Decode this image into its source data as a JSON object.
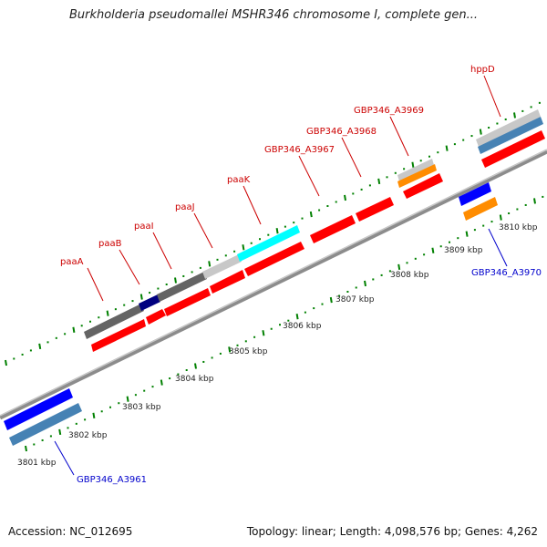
{
  "title": "Burkholderia pseudomallei MSHR346 chromosome I, complete gen...",
  "colors": {
    "red": "#ff0000",
    "dark_gray": "#646464",
    "light_gray": "#c8c8c8",
    "navy": "#000080",
    "cyan": "#00ffff",
    "blue": "#0000ff",
    "steel_blue": "#4682b4",
    "orange": "#ff8c00",
    "ticks_green": "#008000",
    "label_red": "#cc0000",
    "label_blue": "#0000cc"
  },
  "scale_ticks": [
    {
      "label": "3801 kbp",
      "kbp": 3801
    },
    {
      "label": "3802 kbp",
      "kbp": 3802
    },
    {
      "label": "3803 kbp",
      "kbp": 3803
    },
    {
      "label": "3804 kbp",
      "kbp": 3804
    },
    {
      "label": "3805 kbp",
      "kbp": 3805
    },
    {
      "label": "3806 kbp",
      "kbp": 3806
    },
    {
      "label": "3807 kbp",
      "kbp": 3807
    },
    {
      "label": "3808 kbp",
      "kbp": 3808
    },
    {
      "label": "3809 kbp",
      "kbp": 3809
    },
    {
      "label": "3810 kbp",
      "kbp": 3810
    }
  ],
  "feature_labels": [
    {
      "text": "paaA",
      "color": "label_red"
    },
    {
      "text": "paaB",
      "color": "label_red"
    },
    {
      "text": "paaI",
      "color": "label_red"
    },
    {
      "text": "paaJ",
      "color": "label_red"
    },
    {
      "text": "paaK",
      "color": "label_red"
    },
    {
      "text": "GBP346_A3967",
      "color": "label_red"
    },
    {
      "text": "GBP346_A3968",
      "color": "label_red"
    },
    {
      "text": "GBP346_A3969",
      "color": "label_red"
    },
    {
      "text": "hppD",
      "color": "label_red"
    },
    {
      "text": "GBP346_A3970",
      "color": "label_blue"
    },
    {
      "text": "GBP346_A3961",
      "color": "label_blue"
    }
  ],
  "footer": {
    "accession": "Accession: NC_012695",
    "topology": "Topology: linear; Length: 4,098,576 bp; Genes: 4,262"
  }
}
